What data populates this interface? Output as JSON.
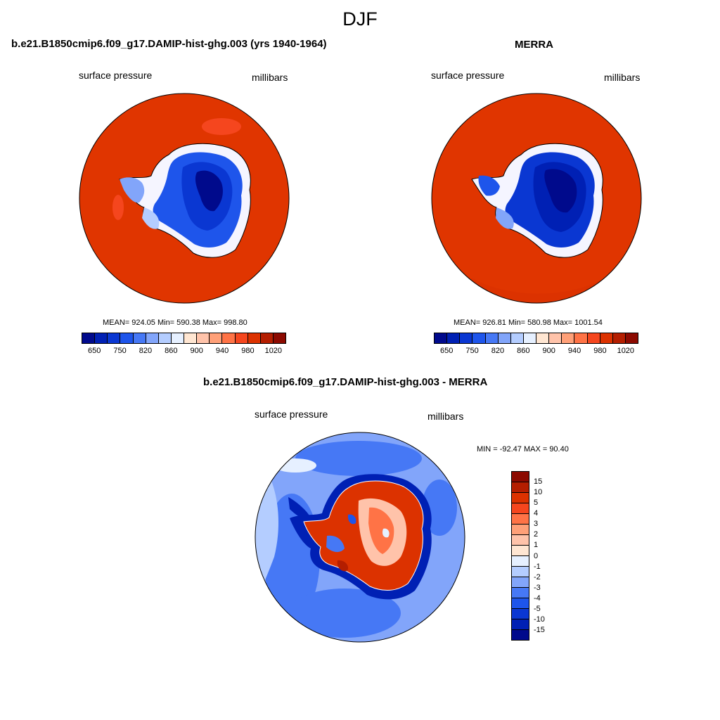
{
  "main_title": "DJF",
  "panels": [
    {
      "title": "b.e21.B1850cmip6.f09_g17.DAMIP-hist-ghg.003 (yrs 1940-1964)",
      "left_label": "surface pressure",
      "right_label": "millibars",
      "stats": "MEAN= 924.05  Min= 590.38  Max= 998.80"
    },
    {
      "title": "MERRA",
      "left_label": "surface pressure",
      "right_label": "millibars",
      "stats": "MEAN= 926.81  Min= 580.98  Max= 1001.54"
    },
    {
      "title": "b.e21.B1850cmip6.f09_g17.DAMIP-hist-ghg.003 - MERRA",
      "left_label": "surface pressure",
      "right_label": "millibars",
      "stats": "MIN = -92.47 MAX =  90.40"
    }
  ],
  "colorbar_abs": {
    "colors": [
      "#000a8c",
      "#0020b4",
      "#0a37d2",
      "#1e55eb",
      "#4678f5",
      "#82a5fa",
      "#b4cdff",
      "#e6f0ff",
      "#ffe6d2",
      "#ffc3aa",
      "#ffa078",
      "#ff7346",
      "#f5461e",
      "#dc3200",
      "#b41e00",
      "#8c0a00"
    ],
    "ticks": [
      "650",
      "750",
      "820",
      "860",
      "900",
      "940",
      "980",
      "1020"
    ]
  },
  "colorbar_diff": {
    "colors": [
      "#8c0a00",
      "#b41e00",
      "#dc3200",
      "#f5461e",
      "#ff7346",
      "#ffa078",
      "#ffc3aa",
      "#ffe6d2",
      "#e6f0ff",
      "#b4cdff",
      "#82a5fa",
      "#4678f5",
      "#1e55eb",
      "#0a37d2",
      "#0020b4",
      "#000a8c"
    ],
    "ticks": [
      "15",
      "10",
      "5",
      "4",
      "3",
      "2",
      "1",
      "0",
      "-1",
      "-2",
      "-3",
      "-4",
      "-5",
      "-10",
      "-15"
    ]
  }
}
